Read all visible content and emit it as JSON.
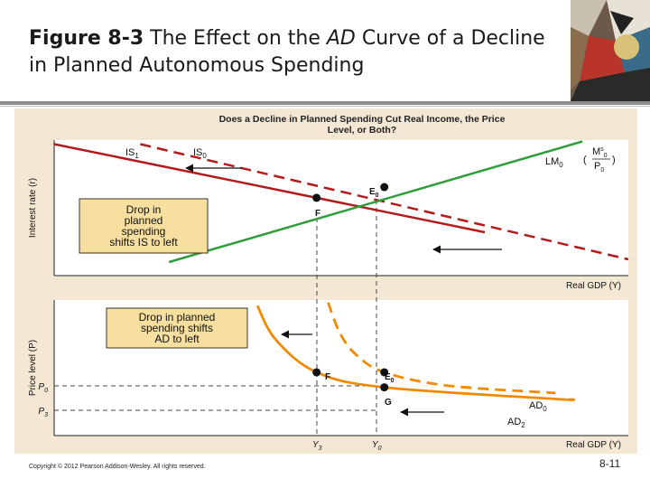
{
  "slide": {
    "title_figure": "Figure 8-3",
    "title_rest_1": " The Effect on the ",
    "title_em": "AD",
    "title_rest_2": " Curve of a Decline in Planned Autonomous Spending",
    "copyright": "Copyright © 2012 Pearson Addison-Wesley. All rights reserved.",
    "page_number": "8-11"
  },
  "colors": {
    "panel_background": "#f4e7d3",
    "plot_background": "#ffffff",
    "is_curve": "#b31b1b",
    "lm_curve": "#2e9e3a",
    "ad_curve": "#f08a00",
    "annotation_box": "#f7dfa0"
  },
  "chart_data": [
    {
      "type": "line",
      "title": "Does a Decline in Planned Spending Cut Real Income, the Price Level, or Both?",
      "xlabel": "Real GDP (Y)",
      "ylabel": "Interest rate (r)",
      "xlim": [
        0,
        10
      ],
      "ylim": [
        0,
        10
      ],
      "grid": false,
      "series": [
        {
          "name": "IS₁",
          "style": "solid",
          "color": "#b31b1b",
          "x": [
            0,
            7.5
          ],
          "y": [
            9.7,
            3.2
          ]
        },
        {
          "name": "IS₀",
          "style": "dashed",
          "color": "#b31b1b",
          "x": [
            1.5,
            10
          ],
          "y": [
            9.7,
            1.2
          ]
        },
        {
          "name": "LM₀ (M₀ˢ/P₀)",
          "style": "solid",
          "color": "#2e9e3a",
          "x": [
            2.0,
            9.2
          ],
          "y": [
            1.0,
            9.9
          ]
        }
      ],
      "points": [
        {
          "label": "F",
          "x": 4.57,
          "y": 5.74
        },
        {
          "label": "E₀",
          "x": 5.75,
          "y": 6.53
        }
      ],
      "annotation": [
        "Drop in",
        "planned",
        "spending",
        "shifts IS to left"
      ],
      "arrows": [
        "IS shifts left (top)",
        "IS shifts left (bottom)"
      ]
    },
    {
      "type": "line",
      "xlabel": "Real GDP (Y)",
      "ylabel": "Price level (P)",
      "xlim": [
        0,
        10
      ],
      "ylim": [
        0,
        10
      ],
      "grid": false,
      "x_ticks": [
        {
          "label": "Y₃",
          "x": 4.57
        },
        {
          "label": "Y₀",
          "x": 5.75
        }
      ],
      "y_ticks": [
        {
          "label": "P₀",
          "y": 4.67
        },
        {
          "label": "P₃",
          "y": 3.56
        }
      ],
      "series": [
        {
          "name": "AD₀",
          "style": "dashed",
          "color": "#f08a00",
          "x": [
            4.77,
            4.98,
            5.26,
            5.75,
            6.84,
            8.73
          ],
          "y": [
            9.82,
            7.54,
            5.96,
            4.67,
            3.69,
            3.14
          ]
        },
        {
          "name": "AD₂",
          "style": "solid",
          "color": "#f08a00",
          "x": [
            3.54,
            3.86,
            4.57,
            5.75,
            8.73,
            9.0
          ],
          "y": [
            9.58,
            7.07,
            4.67,
            3.56,
            2.7,
            2.69
          ]
        }
      ],
      "points": [
        {
          "label": "F",
          "x": 4.57,
          "y": 4.67
        },
        {
          "label": "E₀",
          "x": 5.75,
          "y": 4.67
        },
        {
          "label": "G",
          "x": 5.75,
          "y": 3.56
        }
      ],
      "annotation": [
        "Drop in planned",
        "spending shifts",
        "AD to left"
      ],
      "arrows": [
        "AD shifts left (top)",
        "AD shifts left (bottom)"
      ]
    }
  ],
  "labels": {
    "is1_sub": "IS",
    "is1_idx": "1",
    "is0_sub": "IS",
    "is0_idx": "0",
    "lm": "LM",
    "lm_idx": "0",
    "lm_num": "M",
    "lm_num_sup": "s",
    "lm_num_sub": "0",
    "lm_den": "P",
    "lm_den_sub": "0",
    "ad0": "AD",
    "ad0_idx": "0",
    "ad2": "AD",
    "ad2_idx": "2",
    "f_top": "F",
    "e0_top": "E",
    "e0_top_idx": "0",
    "f_bot": "F",
    "e0_bot": "E",
    "e0_bot_idx": "0",
    "g_bot": "G",
    "p0": "P",
    "p0_idx": "0",
    "p3": "P",
    "p3_idx": "3",
    "y3": "Y",
    "y3_idx": "3",
    "y0": "Y",
    "y0_idx": "0",
    "xlabel_top": "Real GDP (Y)",
    "xlabel_bot": "Real GDP (Y)",
    "ylabel_top": "Interest rate (r)",
    "ylabel_bot": "Price level (P)",
    "title_line1": "Does a Decline in Planned Spending Cut Real Income, the Price",
    "title_line2": "Level, or Both?",
    "box_top_1": "Drop in",
    "box_top_2": "planned",
    "box_top_3": "spending",
    "box_top_4": "shifts IS to left",
    "box_bot_1": "Drop in planned",
    "box_bot_2": "spending shifts",
    "box_bot_3": "AD to left"
  }
}
